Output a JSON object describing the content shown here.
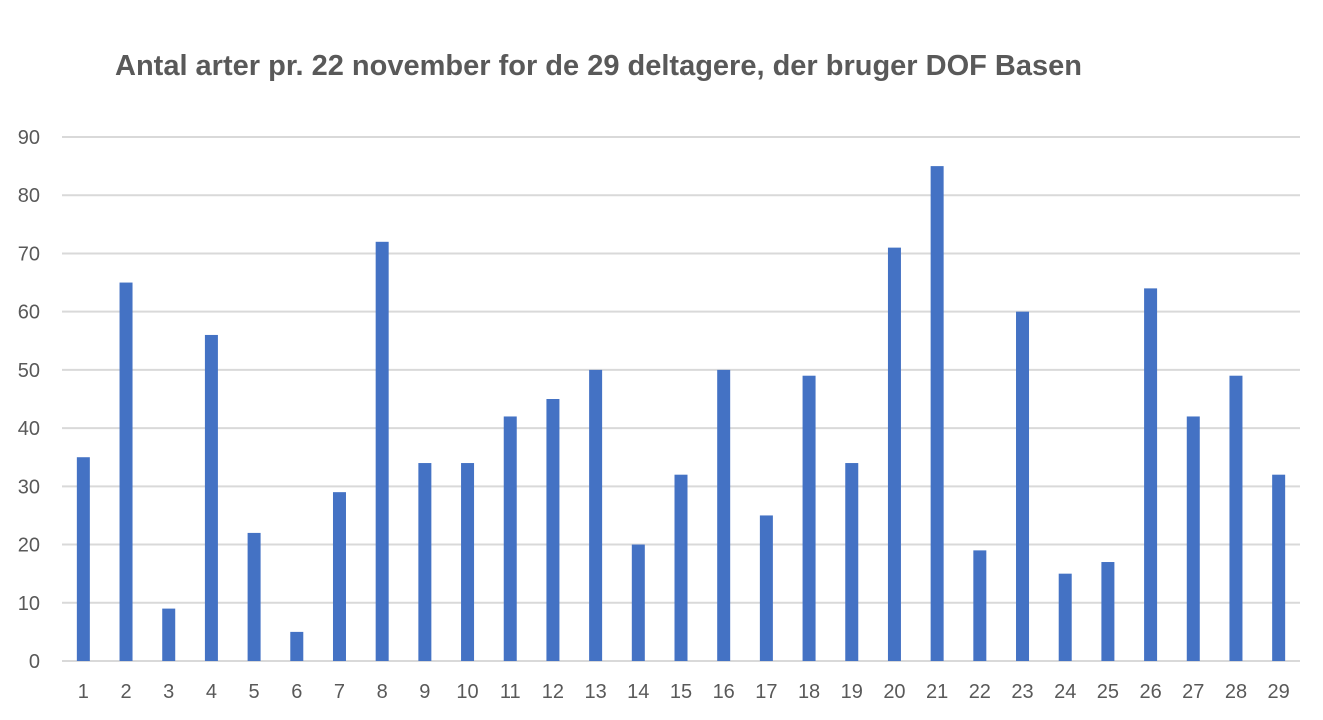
{
  "chart_data": {
    "type": "bar",
    "title": "Antal arter pr. 22 november for de 29 deltagere, der bruger DOF Basen",
    "xlabel": "",
    "ylabel": "",
    "categories": [
      "1",
      "2",
      "3",
      "4",
      "5",
      "6",
      "7",
      "8",
      "9",
      "10",
      "11",
      "12",
      "13",
      "14",
      "15",
      "16",
      "17",
      "18",
      "19",
      "20",
      "21",
      "22",
      "23",
      "24",
      "25",
      "26",
      "27",
      "28",
      "29"
    ],
    "values": [
      35,
      65,
      9,
      56,
      22,
      5,
      29,
      72,
      34,
      34,
      42,
      45,
      50,
      20,
      32,
      50,
      25,
      49,
      34,
      71,
      85,
      19,
      60,
      15,
      17,
      64,
      42,
      49,
      32
    ],
    "ylim": [
      0,
      90
    ],
    "yticks": [
      0,
      10,
      20,
      30,
      40,
      50,
      60,
      70,
      80,
      90
    ],
    "grid": true,
    "legend": "none",
    "colors": {
      "bar": "#4472C4",
      "gridline": "#D9D9D9",
      "text": "#595959"
    }
  }
}
